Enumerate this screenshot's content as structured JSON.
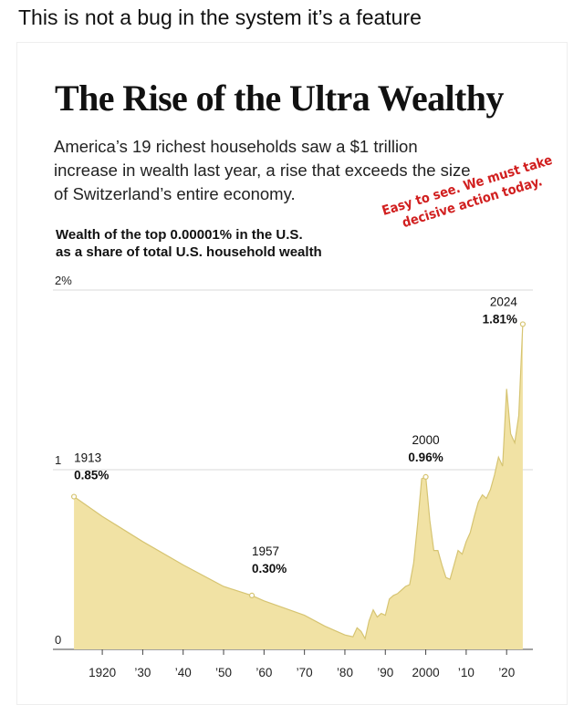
{
  "post": {
    "caption": "This is not a bug in the system it’s a feature"
  },
  "graphic": {
    "title": "The Rise of the Ultra Wealthy",
    "subtitle": "America’s 19 richest households saw a $1 trillion increase in wealth last year, a rise that exceeds the size of Switzerland’s entire economy.",
    "chart_label_line1": "Wealth of the top 0.00001% in the U.S.",
    "chart_label_line2": "as a share of total U.S. household wealth",
    "handwritten_annotation": "Easy to see. We must take decisive action today."
  },
  "colors": {
    "area_fill": "#f1e2a4",
    "area_stroke": "#d6c472",
    "gridline": "#cccccc",
    "annotation": "#d11f1f"
  },
  "chart_data": {
    "type": "area",
    "title": "The Rise of the Ultra Wealthy",
    "ylabel": "Wealth of the top 0.00001% in the U.S. as a share of total U.S. household wealth",
    "xlim": [
      1913,
      2024
    ],
    "ylim": [
      0,
      2
    ],
    "y_ticks": [
      {
        "value": 2,
        "label": "2%"
      },
      {
        "value": 1,
        "label": "1"
      },
      {
        "value": 0,
        "label": "0"
      }
    ],
    "x_ticks": [
      {
        "value": 1920,
        "label": "1920"
      },
      {
        "value": 1930,
        "label": "’30"
      },
      {
        "value": 1940,
        "label": "’40"
      },
      {
        "value": 1950,
        "label": "’50"
      },
      {
        "value": 1960,
        "label": "’60"
      },
      {
        "value": 1970,
        "label": "’70"
      },
      {
        "value": 1980,
        "label": "’80"
      },
      {
        "value": 1990,
        "label": "’90"
      },
      {
        "value": 2000,
        "label": "2000"
      },
      {
        "value": 2010,
        "label": "’10"
      },
      {
        "value": 2020,
        "label": "’20"
      }
    ],
    "grid": true,
    "series": [
      {
        "x": [
          1913,
          1920,
          1930,
          1940,
          1950,
          1957,
          1960,
          1965,
          1970,
          1975,
          1978,
          1980,
          1982,
          1983,
          1984,
          1985,
          1986,
          1987,
          1988,
          1989,
          1990,
          1991,
          1992,
          1993,
          1994,
          1995,
          1996,
          1997,
          1998,
          1999,
          2000,
          2001,
          2002,
          2003,
          2004,
          2005,
          2006,
          2007,
          2008,
          2009,
          2010,
          2011,
          2012,
          2013,
          2014,
          2015,
          2016,
          2017,
          2018,
          2019,
          2020,
          2021,
          2022,
          2023,
          2024
        ],
        "y": [
          0.85,
          0.74,
          0.6,
          0.47,
          0.35,
          0.3,
          0.27,
          0.23,
          0.19,
          0.13,
          0.1,
          0.08,
          0.07,
          0.12,
          0.1,
          0.06,
          0.16,
          0.22,
          0.18,
          0.2,
          0.19,
          0.28,
          0.3,
          0.31,
          0.33,
          0.35,
          0.36,
          0.48,
          0.7,
          0.95,
          0.96,
          0.72,
          0.55,
          0.55,
          0.47,
          0.4,
          0.39,
          0.47,
          0.55,
          0.53,
          0.6,
          0.65,
          0.74,
          0.82,
          0.86,
          0.84,
          0.89,
          0.97,
          1.07,
          1.02,
          1.45,
          1.2,
          1.15,
          1.3,
          1.81
        ]
      }
    ],
    "annotations": [
      {
        "x": 1913,
        "y": 0.85,
        "label_year": "1913",
        "label_value": "0.85%"
      },
      {
        "x": 1957,
        "y": 0.3,
        "label_year": "1957",
        "label_value": "0.30%"
      },
      {
        "x": 2000,
        "y": 0.96,
        "label_year": "2000",
        "label_value": "0.96%"
      },
      {
        "x": 2024,
        "y": 1.81,
        "label_year": "2024",
        "label_value": "1.81%"
      }
    ]
  }
}
